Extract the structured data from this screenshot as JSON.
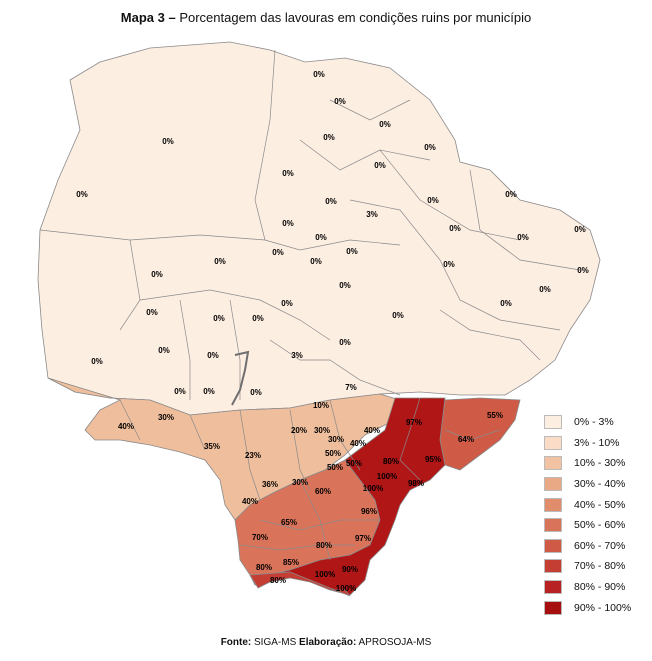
{
  "title": {
    "prefix": "Mapa 3 –",
    "text": "Porcentagem das lavouras em condições ruins por município"
  },
  "legend": {
    "items": [
      {
        "label": "0% - 3%",
        "color": "#fdeee2"
      },
      {
        "label": "3% - 10%",
        "color": "#fbdcc6"
      },
      {
        "label": "10% - 30%",
        "color": "#f2c3a2"
      },
      {
        "label": "30% - 40%",
        "color": "#e9a985"
      },
      {
        "label": "40% - 50%",
        "color": "#e18c6b"
      },
      {
        "label": "50% - 60%",
        "color": "#d9745a"
      },
      {
        "label": "60% - 70%",
        "color": "#cf5a46"
      },
      {
        "label": "70% - 80%",
        "color": "#c53e34"
      },
      {
        "label": "80% - 90%",
        "color": "#b92222"
      },
      {
        "label": "90% - 100%",
        "color": "#a70e0e"
      }
    ]
  },
  "labels": [
    "0%",
    "0%",
    "0%",
    "0%",
    "0%",
    "0%",
    "0%",
    "0%",
    "0%",
    "0%",
    "0%",
    "3%",
    "0%",
    "0%",
    "0%",
    "0%",
    "0%",
    "0%",
    "0%",
    "0%",
    "0%",
    "0%",
    "0%",
    "0%",
    "0%",
    "0%",
    "0%",
    "0%",
    "0%",
    "0%",
    "0%",
    "0%",
    "0%",
    "0%",
    "0%",
    "3%",
    "0%",
    "0%",
    "0%",
    "0%",
    "0%",
    "7%",
    "10%",
    "55%",
    "97%",
    "40%",
    "30%",
    "20%",
    "30%",
    "40%",
    "30%",
    "64%",
    "35%",
    "23%",
    "50%",
    "40%",
    "80%",
    "95%",
    "50%",
    "50%",
    "36%",
    "30%",
    "100%",
    "98%",
    "60%",
    "100%",
    "40%",
    "96%",
    "65%",
    "70%",
    "80%",
    "97%",
    "85%",
    "80%",
    "100%",
    "90%",
    "80%",
    "100%"
  ],
  "source": {
    "label_fonte": "Fonte:",
    "fonte": "SIGA-MS",
    "label_elab": "Elaboração:",
    "elab": "APROSOJA-MS"
  }
}
